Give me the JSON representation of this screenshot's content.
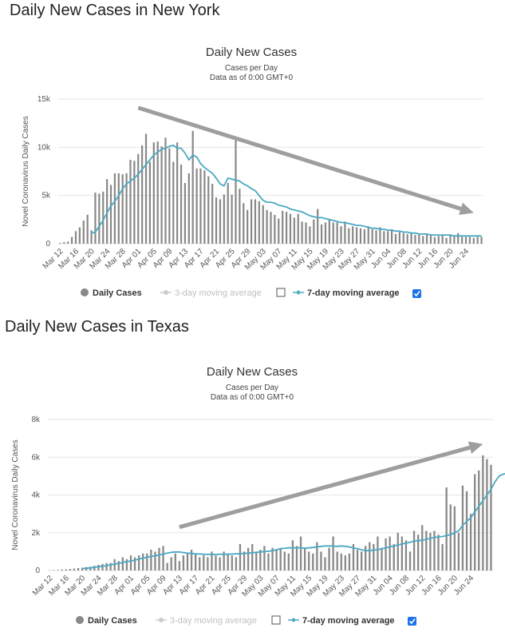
{
  "sections": [
    {
      "heading": "Daily New Cases in New York",
      "chart_data": {
        "type": "bar",
        "title": "Daily New Cases",
        "subtitle_lines": [
          "Cases per Day",
          "Data as of 0:00 GMT+0"
        ],
        "ylabel": "Novel Coronavirus Daily Cases",
        "xlabel": "",
        "ylim": [
          0,
          15000
        ],
        "yticks": [
          0,
          5000,
          10000,
          15000
        ],
        "ytick_labels": [
          "0",
          "5k",
          "10k",
          "15k"
        ],
        "date_start": "2020-03-12",
        "xtick_labels": [
          "Mar 12",
          "Mar 16",
          "Mar 20",
          "Mar 24",
          "Mar 28",
          "Apr 01",
          "Apr 05",
          "Apr 09",
          "Apr 13",
          "Apr 17",
          "Apr 21",
          "Apr 25",
          "Apr 29",
          "May 03",
          "May 07",
          "May 11",
          "May 15",
          "May 19",
          "May 23",
          "May 27",
          "May 31",
          "Jun 04",
          "Jun 08",
          "Jun 12",
          "Jun 16",
          "Jun 20",
          "Jun 24"
        ],
        "series": [
          {
            "name": "Daily Cases",
            "type": "bar",
            "color": "#888888",
            "visible": true,
            "values": [
              70,
              150,
              220,
              700,
              1300,
              1700,
              2400,
              3000,
              1400,
              5300,
              5200,
              5400,
              6700,
              6100,
              7300,
              7300,
              7200,
              7300,
              8700,
              8600,
              9300,
              10200,
              11400,
              8500,
              10500,
              10600,
              10100,
              11000,
              9900,
              8500,
              10500,
              8200,
              6300,
              7300,
              11700,
              7800,
              7800,
              7600,
              7000,
              6200,
              4800,
              4600,
              5100,
              6300,
              5100,
              10800,
              5700,
              4200,
              3500,
              4600,
              4600,
              4400,
              4000,
              3500,
              3300,
              3000,
              2600,
              3400,
              3300,
              3100,
              2700,
              3100,
              2300,
              2200,
              1800,
              2500,
              3600,
              2000,
              2200,
              2500,
              2200,
              2200,
              1800,
              2300,
              1600,
              1800,
              1700,
              1600,
              1500,
              1800,
              1500,
              1400,
              1700,
              1300,
              1300,
              1500,
              1000,
              1200,
              1100,
              1000,
              1100,
              900,
              1000,
              800,
              1000,
              900,
              700,
              800,
              900,
              600,
              900,
              800,
              1100,
              700,
              700,
              700,
              600,
              700,
              700
            ]
          },
          {
            "name": "3-day moving average",
            "type": "line",
            "color": "#cccccc",
            "visible": false,
            "values": []
          },
          {
            "name": "7-day moving average",
            "type": "line",
            "color": "#4aa8c4",
            "visible": true,
            "start_index": 8,
            "values": [
              1100,
              1200,
              1800,
              2400,
              3200,
              3900,
              4400,
              5000,
              5700,
              6200,
              6500,
              6800,
              7200,
              7700,
              8200,
              8700,
              9200,
              9500,
              9800,
              9900,
              10100,
              10200,
              9900,
              9900,
              9400,
              8700,
              9200,
              9000,
              8300,
              7900,
              7600,
              7300,
              6800,
              6200,
              6000,
              6800,
              6700,
              6600,
              6500,
              6200,
              6000,
              5700,
              5500,
              5000,
              4500,
              4300,
              4300,
              4200,
              4000,
              3900,
              3800,
              3600,
              3500,
              3400,
              3300,
              3100,
              2900,
              2800,
              2700,
              2700,
              2600,
              2500,
              2400,
              2300,
              2200,
              2200,
              2100,
              2000,
              1900,
              1900,
              1800,
              1700,
              1600,
              1600,
              1500,
              1500,
              1400,
              1400,
              1300,
              1300,
              1200,
              1200,
              1100,
              1100,
              1000,
              1000,
              1000,
              900,
              900,
              900,
              900,
              900,
              900,
              800,
              800,
              800,
              800,
              800,
              800,
              800,
              800
            ]
          }
        ],
        "arrow": {
          "from": [
            20,
            14100
          ],
          "to": [
            106,
            3200
          ],
          "color": "#9e9e9e"
        },
        "legend": {
          "placement": "bottom",
          "items": [
            {
              "label": "Daily Cases",
              "active": true,
              "checkbox": null
            },
            {
              "label": "3-day moving average",
              "active": false,
              "checkbox": false
            },
            {
              "label": "7-day moving average",
              "active": true,
              "checkbox": true
            }
          ]
        }
      }
    },
    {
      "heading": "Daily New Cases in Texas",
      "chart_data": {
        "type": "bar",
        "title": "Daily New Cases",
        "subtitle_lines": [
          "Cases per Day",
          "Data as of 0:00 GMT+0"
        ],
        "ylabel": "Novel Coronavirus Daily Cases",
        "xlabel": "",
        "ylim": [
          0,
          8000
        ],
        "yticks": [
          0,
          2000,
          4000,
          6000,
          8000
        ],
        "ytick_labels": [
          "0",
          "2k",
          "4k",
          "6k",
          "8k"
        ],
        "date_start": "2020-03-12",
        "xtick_labels": [
          "Mar 12",
          "Mar 16",
          "Mar 20",
          "Mar 24",
          "Mar 28",
          "Apr 01",
          "Apr 05",
          "Apr 09",
          "Apr 13",
          "Apr 17",
          "Apr 21",
          "Apr 25",
          "Apr 29",
          "May 03",
          "May 07",
          "May 11",
          "May 15",
          "May 19",
          "May 23",
          "May 27",
          "May 31",
          "Jun 04",
          "Jun 08",
          "Jun 12",
          "Jun 16",
          "Jun 20",
          "Jun 24"
        ],
        "series": [
          {
            "name": "Daily Cases",
            "type": "bar",
            "color": "#888888",
            "visible": true,
            "values": [
              10,
              20,
              30,
              50,
              60,
              80,
              100,
              130,
              150,
              180,
              200,
              250,
              300,
              350,
              400,
              400,
              600,
              500,
              700,
              600,
              800,
              700,
              800,
              900,
              900,
              1100,
              1000,
              1200,
              1300,
              400,
              700,
              900,
              500,
              800,
              900,
              1100,
              900,
              700,
              800,
              700,
              1000,
              800,
              700,
              1000,
              900,
              800,
              700,
              1400,
              1000,
              1200,
              1400,
              1000,
              1100,
              1300,
              900,
              1200,
              1100,
              1200,
              1000,
              900,
              1600,
              1300,
              1800,
              1200,
              1000,
              900,
              1500,
              1000,
              700,
              1200,
              1800,
              1000,
              900,
              800,
              900,
              1400,
              1100,
              1000,
              1300,
              1500,
              1400,
              1800,
              1200,
              1700,
              1800,
              1400,
              2000,
              1800,
              1600,
              1000,
              2100,
              1900,
              2400,
              2100,
              2000,
              2100,
              1900,
              1400,
              4400,
              3500,
              3400,
              2000,
              4500,
              4200,
              3000,
              5100,
              5300,
              6100,
              5900,
              5600
            ]
          },
          {
            "name": "3-day moving average",
            "type": "line",
            "color": "#cccccc",
            "visible": false,
            "values": []
          },
          {
            "name": "7-day moving average",
            "type": "line",
            "color": "#4aa8c4",
            "visible": true,
            "start_index": 8,
            "values": [
              100,
              120,
              140,
              160,
              200,
              230,
              260,
              300,
              330,
              380,
              420,
              470,
              500,
              550,
              600,
              650,
              700,
              750,
              780,
              820,
              870,
              920,
              960,
              980,
              980,
              950,
              920,
              900,
              880,
              870,
              860,
              850,
              850,
              850,
              860,
              860,
              860,
              870,
              880,
              890,
              900,
              920,
              940,
              960,
              980,
              1000,
              1020,
              1050,
              1100,
              1150,
              1180,
              1200,
              1200,
              1200,
              1200,
              1180,
              1200,
              1220,
              1250,
              1280,
              1300,
              1300,
              1290,
              1280,
              1300,
              1280,
              1250,
              1200,
              1150,
              1100,
              1050,
              1050,
              1080,
              1100,
              1150,
              1200,
              1250,
              1300,
              1350,
              1400,
              1450,
              1500,
              1550,
              1580,
              1600,
              1650,
              1700,
              1750,
              1780,
              1800,
              1850,
              1900,
              2000,
              2100,
              2400,
              2600,
              2800,
              3100,
              3400,
              3700,
              4000,
              4300,
              4700,
              5000,
              5100,
              5150
            ]
          }
        ],
        "arrow": {
          "from": [
            32,
            2300
          ],
          "to": [
            107,
            6700
          ],
          "color": "#9e9e9e"
        },
        "legend": {
          "placement": "bottom",
          "items": [
            {
              "label": "Daily Cases",
              "active": true,
              "checkbox": null
            },
            {
              "label": "3-day moving average",
              "active": false,
              "checkbox": false
            },
            {
              "label": "7-day moving average",
              "active": true,
              "checkbox": true
            }
          ]
        }
      }
    }
  ]
}
